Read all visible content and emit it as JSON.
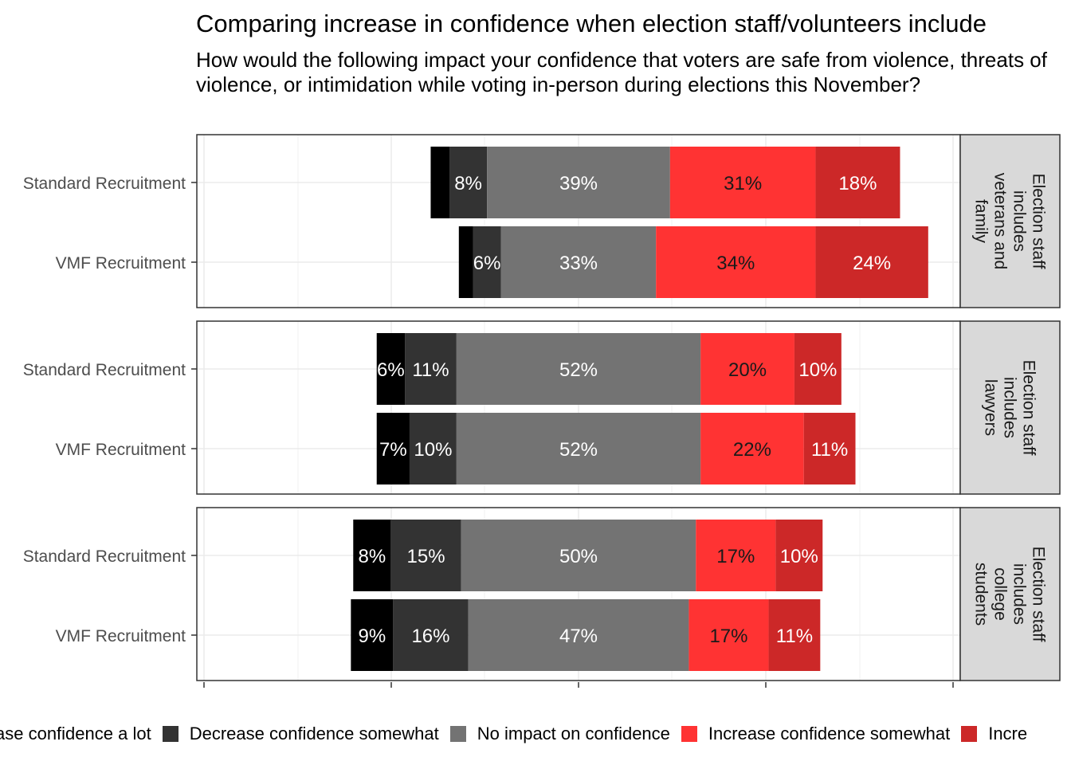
{
  "title": "Comparing increase in confidence when election staff/volunteers include",
  "subtitle": "How would the following impact your confidence that voters are safe from violence, threats of violence, or intimidation while voting in-person during elections this November?",
  "chart_data": {
    "type": "bar",
    "orientation": "horizontal",
    "stacked": "diverging",
    "grid": true,
    "legend_position": "bottom",
    "categories": [
      "Standard Recruitment",
      "VMF Recruitment"
    ],
    "legend": [
      {
        "name": "Decrease confidence a lot",
        "visible_label": "ase confidence a lot",
        "color": "#000000"
      },
      {
        "name": "Decrease confidence somewhat",
        "visible_label": "Decrease confidence somewhat",
        "color": "#333333"
      },
      {
        "name": "No impact on confidence",
        "visible_label": "No impact on confidence",
        "color": "#737373"
      },
      {
        "name": "Increase confidence somewhat",
        "visible_label": "Increase confidence somewhat",
        "color": "#ff3333"
      },
      {
        "name": "Increase confidence a lot",
        "visible_label": "Incre",
        "color": "#cc2828"
      }
    ],
    "panels": [
      {
        "strip": [
          "Election staff",
          "includes",
          "veterans and",
          "family"
        ],
        "rows": [
          {
            "category": "Standard Recruitment",
            "values": [
              4,
              8,
              39,
              31,
              18
            ],
            "labels": [
              "",
              "8%",
              "39%",
              "31%",
              "18%"
            ]
          },
          {
            "category": "VMF Recruitment",
            "values": [
              3,
              6,
              33,
              34,
              24
            ],
            "labels": [
              "",
              "6%",
              "33%",
              "34%",
              "24%"
            ]
          }
        ]
      },
      {
        "strip": [
          "Election staff",
          "includes",
          "lawyers"
        ],
        "rows": [
          {
            "category": "Standard Recruitment",
            "values": [
              6,
              11,
              52,
              20,
              10
            ],
            "labels": [
              "6%",
              "11%",
              "52%",
              "20%",
              "10%"
            ]
          },
          {
            "category": "VMF Recruitment",
            "values": [
              7,
              10,
              52,
              22,
              11
            ],
            "labels": [
              "7%",
              "10%",
              "52%",
              "22%",
              "11%"
            ]
          }
        ]
      },
      {
        "strip": [
          "Election staff",
          "includes",
          "college",
          "students"
        ],
        "rows": [
          {
            "category": "Standard Recruitment",
            "values": [
              8,
              15,
              50,
              17,
              10
            ],
            "labels": [
              "8%",
              "15%",
              "50%",
              "17%",
              "10%"
            ]
          },
          {
            "category": "VMF Recruitment",
            "values": [
              9,
              16,
              47,
              17,
              11
            ],
            "labels": [
              "9%",
              "16%",
              "47%",
              "17%",
              "11%"
            ]
          }
        ]
      }
    ]
  }
}
